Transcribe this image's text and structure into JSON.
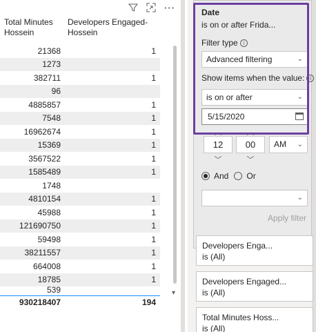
{
  "table": {
    "columns": [
      "Total Minutes\nHossein",
      "Developers Engaged-\nHossein"
    ],
    "col1_line1": "Total Minutes",
    "col1_line2": "Hossein",
    "col2_line1": "Developers Engaged-",
    "col2_line2": "Hossein",
    "rows": [
      {
        "minutes": "21368",
        "devs": "1"
      },
      {
        "minutes": "1273",
        "devs": ""
      },
      {
        "minutes": "382711",
        "devs": "1"
      },
      {
        "minutes": "96",
        "devs": ""
      },
      {
        "minutes": "4885857",
        "devs": "1"
      },
      {
        "minutes": "7548",
        "devs": "1"
      },
      {
        "minutes": "16962674",
        "devs": "1"
      },
      {
        "minutes": "15369",
        "devs": "1"
      },
      {
        "minutes": "3567522",
        "devs": "1"
      },
      {
        "minutes": "1585489",
        "devs": "1"
      },
      {
        "minutes": "1748",
        "devs": ""
      },
      {
        "minutes": "4810154",
        "devs": "1"
      },
      {
        "minutes": "45988",
        "devs": "1"
      },
      {
        "minutes": "121690750",
        "devs": "1"
      },
      {
        "minutes": "59498",
        "devs": "1"
      },
      {
        "minutes": "38211557",
        "devs": "1"
      },
      {
        "minutes": "664008",
        "devs": "1"
      },
      {
        "minutes": "18785",
        "devs": "1"
      },
      {
        "minutes": "539",
        "devs": ""
      }
    ],
    "total": {
      "minutes": "930218407",
      "devs": "194"
    }
  },
  "visual_header": {
    "filter_icon": "filter-icon",
    "focus_icon": "focus-mode-icon",
    "more_icon": "more-options-icon"
  },
  "filter": {
    "title": "Date",
    "summary": "is on or after Frida...",
    "filter_type_label": "Filter type",
    "filter_type_value": "Advanced filtering",
    "show_items_label": "Show items when the value:",
    "condition_value": "is on or after",
    "date_value": "5/15/2020",
    "hour": "12",
    "minute": "00",
    "ampm": "AM",
    "and_label": "And",
    "or_label": "Or",
    "apply_label": "Apply filter"
  },
  "other_filters": [
    {
      "title": "Developers Enga...",
      "summary": "is (All)"
    },
    {
      "title": "Developers Engaged...",
      "summary": "is (All)"
    },
    {
      "title": "Total Minutes Hoss...",
      "summary": "is (All)"
    }
  ],
  "colors": {
    "highlight": "#6b3fa0",
    "total_border": "#118dff",
    "row_alt": "#eeeeee"
  }
}
